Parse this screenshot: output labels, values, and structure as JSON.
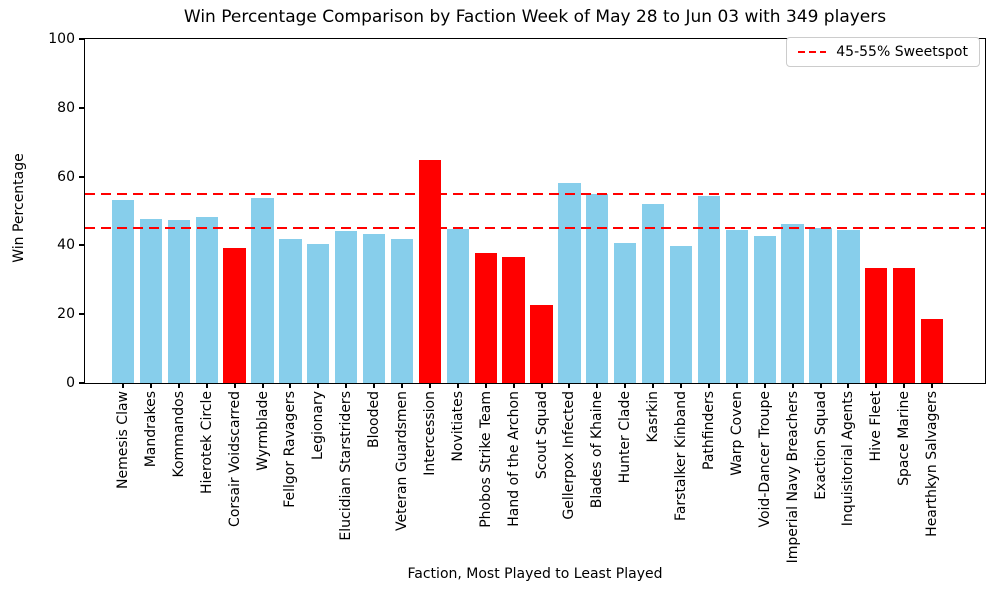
{
  "chart_data": {
    "type": "bar",
    "title": "Win Percentage Comparison by Faction Week of May 28 to Jun 03 with 349 players",
    "xlabel": "Faction, Most Played to Least Played",
    "ylabel": "Win Percentage",
    "ylim": [
      0,
      100
    ],
    "yticks": [
      0,
      20,
      40,
      60,
      80,
      100
    ],
    "grid": false,
    "legend_position": "top-right",
    "legend": [
      {
        "label": "45-55% Sweetspot",
        "color": "#ff0000",
        "style": "dashed"
      }
    ],
    "reference_lines": [
      {
        "y": 45,
        "color": "#ff0000",
        "style": "dashed"
      },
      {
        "y": 55,
        "color": "#ff0000",
        "style": "dashed"
      }
    ],
    "colors": {
      "default_bar": "#87ceeb",
      "flagged_bar": "#ff0000",
      "reference_line": "#ff0000"
    },
    "categories": [
      "Nemesis Claw",
      "Mandrakes",
      "Kommandos",
      "Hierotek Circle",
      "Corsair Voidscarred",
      "Wyrmblade",
      "Fellgor Ravagers",
      "Legionary",
      "Elucidian Starstriders",
      "Blooded",
      "Veteran Guardsmen",
      "Intercession",
      "Novitiates",
      "Phobos Strike Team",
      "Hand of the Archon",
      "Scout Squad",
      "Gellerpox Infected",
      "Blades of Khaine",
      "Hunter Clade",
      "Kasrkin",
      "Farstalker Kinband",
      "Pathfinders",
      "Warp Coven",
      "Void-Dancer Troupe",
      "Imperial Navy Breachers",
      "Exaction Squad",
      "Inquisitorial Agents",
      "Hive Fleet",
      "Space Marine",
      "Hearthkyn Salvagers"
    ],
    "values": [
      53.1,
      47.8,
      47.4,
      48.4,
      39.2,
      53.9,
      41.9,
      40.5,
      44.2,
      43.3,
      41.9,
      64.7,
      44.7,
      37.9,
      36.7,
      22.7,
      58.0,
      55.0,
      40.8,
      52.1,
      39.8,
      54.4,
      44.4,
      42.7,
      46.2,
      45.1,
      44.4,
      33.3,
      33.3,
      18.5
    ],
    "bar_colors": [
      "#87ceeb",
      "#87ceeb",
      "#87ceeb",
      "#87ceeb",
      "#ff0000",
      "#87ceeb",
      "#87ceeb",
      "#87ceeb",
      "#87ceeb",
      "#87ceeb",
      "#87ceeb",
      "#ff0000",
      "#87ceeb",
      "#ff0000",
      "#ff0000",
      "#ff0000",
      "#87ceeb",
      "#87ceeb",
      "#87ceeb",
      "#87ceeb",
      "#87ceeb",
      "#87ceeb",
      "#87ceeb",
      "#87ceeb",
      "#87ceeb",
      "#87ceeb",
      "#87ceeb",
      "#ff0000",
      "#ff0000",
      "#ff0000"
    ]
  }
}
